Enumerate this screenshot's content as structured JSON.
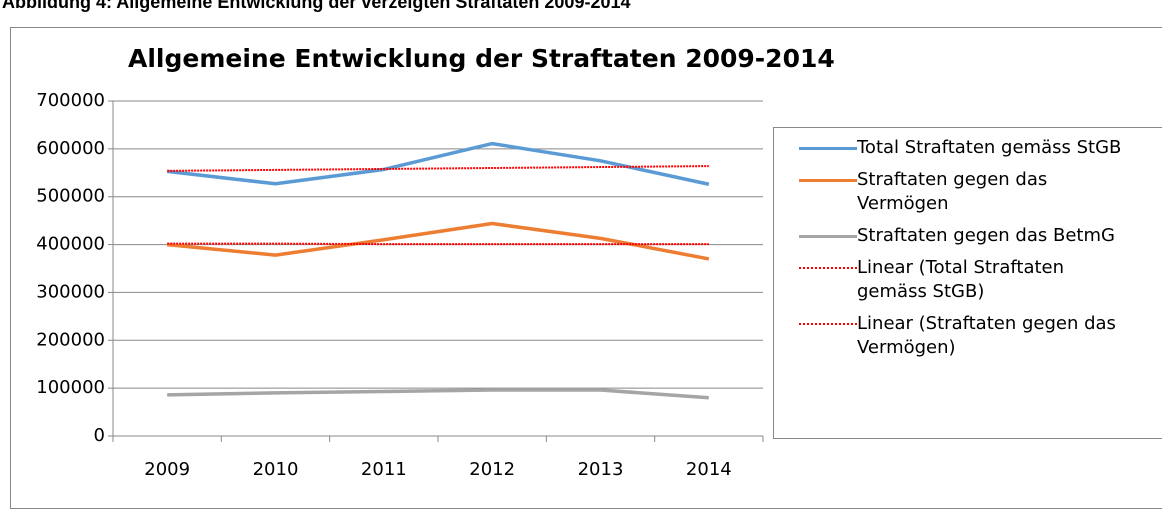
{
  "caption": "Abbildung 4: Allgemeine Entwicklung der verzeigten Straftaten 2009-2014",
  "chart_data": {
    "type": "line",
    "title": "Allgemeine Entwicklung der Straftaten 2009-2014",
    "categories": [
      "2009",
      "2010",
      "2011",
      "2012",
      "2013",
      "2014"
    ],
    "series": [
      {
        "name": "Total Straftaten gemäss StGB",
        "color": "#5b9bd5",
        "style": "solid",
        "values": [
          553000,
          527000,
          557000,
          611000,
          575000,
          526000
        ]
      },
      {
        "name": "Straftaten gegen das Vermögen",
        "color": "#ed7d31",
        "style": "solid",
        "values": [
          400000,
          378000,
          410000,
          444000,
          413000,
          370000
        ]
      },
      {
        "name": "Straftaten gegen das BetmG",
        "color": "#a5a5a5",
        "style": "solid",
        "values": [
          86000,
          90000,
          93000,
          96000,
          96000,
          80000
        ]
      },
      {
        "name": "Linear (Total Straftaten gemäss StGB)",
        "color": "#ff0000",
        "style": "dotted",
        "values": [
          554000,
          556000,
          558000,
          560000,
          562000,
          564000
        ]
      },
      {
        "name": "Linear (Straftaten gegen das Vermögen)",
        "color": "#ff0000",
        "style": "dotted",
        "values": [
          402000,
          402000,
          401000,
          401000,
          401000,
          401000
        ]
      }
    ],
    "ylim": [
      0,
      700000
    ],
    "yticks": [
      0,
      100000,
      200000,
      300000,
      400000,
      500000,
      600000,
      700000
    ],
    "grid": true,
    "legend": "right"
  }
}
